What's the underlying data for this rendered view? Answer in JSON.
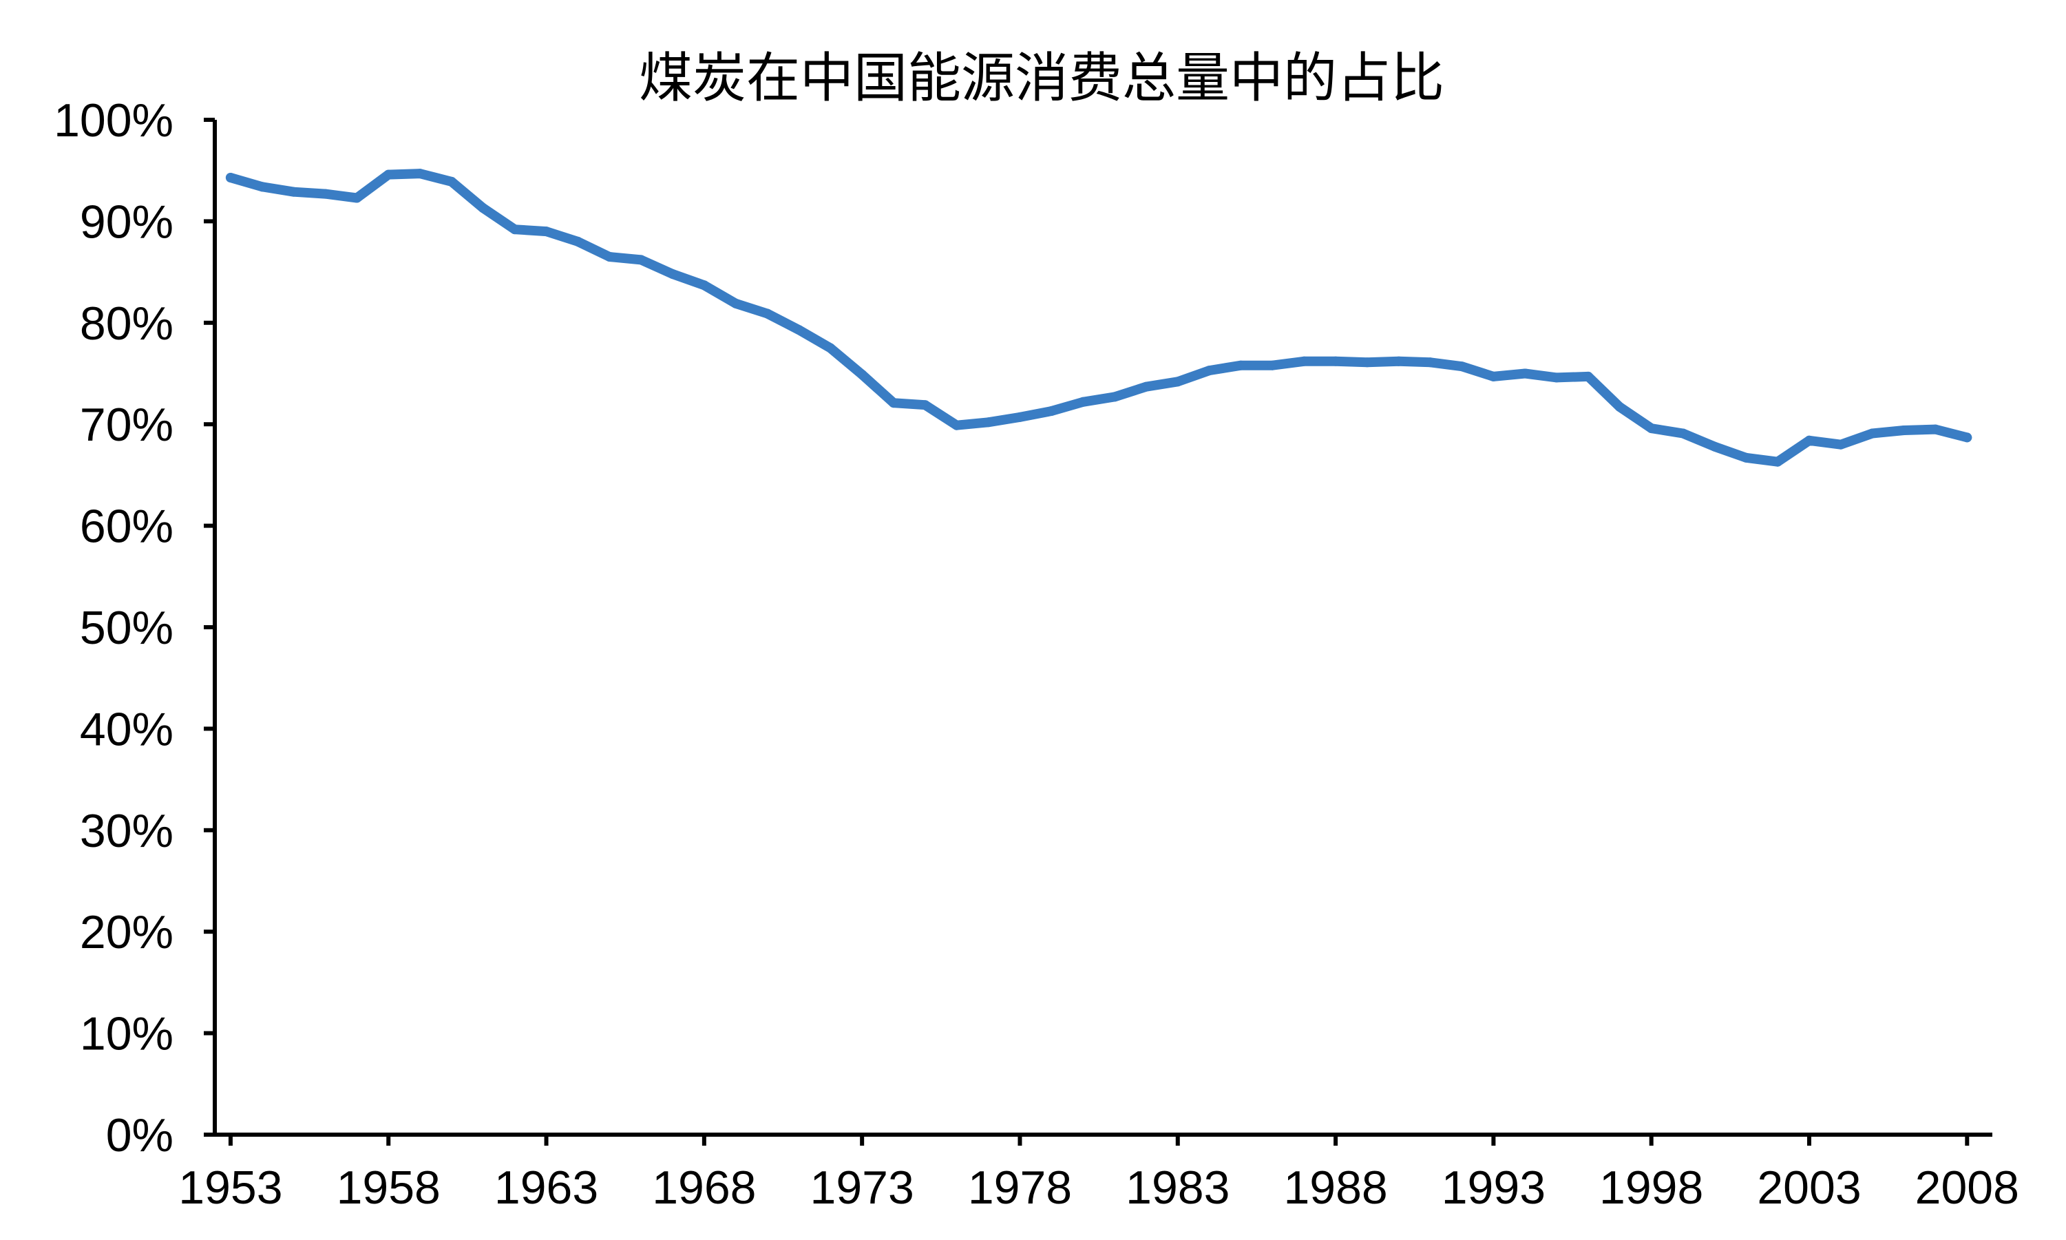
{
  "chart_data": {
    "type": "line",
    "title": "煤炭在中国能源消费总量中的占比",
    "xlabel": "",
    "ylabel": "",
    "ylim": [
      0,
      100
    ],
    "xlim": [
      1952.5,
      2008.8
    ],
    "yticks": [
      0,
      10,
      20,
      30,
      40,
      50,
      60,
      70,
      80,
      90,
      100
    ],
    "ytick_labels": [
      "0%",
      "10%",
      "20%",
      "30%",
      "40%",
      "50%",
      "60%",
      "70%",
      "80%",
      "90%",
      "100%"
    ],
    "xticks": [
      1953,
      1958,
      1963,
      1968,
      1973,
      1978,
      1983,
      1988,
      1993,
      1998,
      2003,
      2008
    ],
    "xtick_labels": [
      "1953",
      "1958",
      "1963",
      "1968",
      "1973",
      "1978",
      "1983",
      "1988",
      "1993",
      "1998",
      "2003",
      "2008"
    ],
    "grid": false,
    "legend": "none",
    "colors": {
      "series": "#3a7dc4",
      "axis": "#000000"
    },
    "series": [
      {
        "x": [
          1953,
          1954,
          1955,
          1956,
          1957,
          1958,
          1959,
          1960,
          1961,
          1962,
          1963,
          1964,
          1965,
          1966,
          1967,
          1968,
          1969,
          1970,
          1971,
          1972,
          1973,
          1974,
          1975,
          1976,
          1977,
          1978,
          1979,
          1980,
          1981,
          1982,
          1983,
          1984,
          1985,
          1986,
          1987,
          1988,
          1989,
          1990,
          1991,
          1992,
          1993,
          1994,
          1995,
          1996,
          1997,
          1998,
          1999,
          2000,
          2001,
          2002,
          2003,
          2004,
          2005,
          2006,
          2007,
          2008
        ],
        "values": [
          94.3,
          93.4,
          92.9,
          92.7,
          92.3,
          94.6,
          94.7,
          93.9,
          91.3,
          89.2,
          89.0,
          88.0,
          86.5,
          86.2,
          84.8,
          83.7,
          81.9,
          80.9,
          79.3,
          77.5,
          74.9,
          72.1,
          71.9,
          69.9,
          70.2,
          70.7,
          71.3,
          72.2,
          72.7,
          73.7,
          74.2,
          75.3,
          75.8,
          75.8,
          76.2,
          76.2,
          76.1,
          76.2,
          76.1,
          75.7,
          74.7,
          75.0,
          74.6,
          74.7,
          71.7,
          69.6,
          69.1,
          67.8,
          66.7,
          66.3,
          68.4,
          68.0,
          69.1,
          69.4,
          69.5,
          68.7
        ]
      }
    ]
  }
}
